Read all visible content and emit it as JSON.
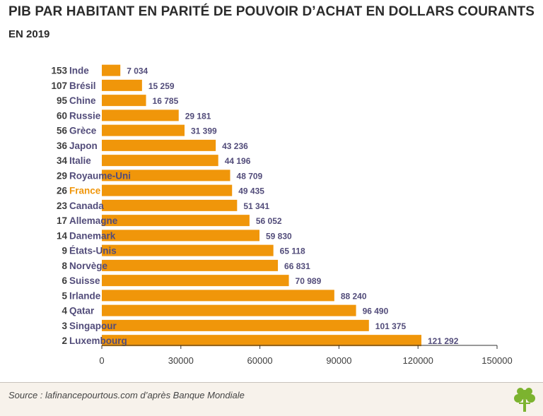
{
  "header": {
    "title": "PIB PAR HABITANT EN PARITÉ DE POUVOIR D’ACHAT EN DOLLARS COURANTS",
    "subtitle": "EN 2019"
  },
  "footer": {
    "source": "Source : lafinancepourtous.com d’après Banque Mondiale"
  },
  "colors": {
    "bar": "#f0960a",
    "highlight_label": "#f0960a",
    "country_label": "#524c7a",
    "axis": "#333333"
  },
  "chart_data": {
    "type": "bar",
    "orientation": "horizontal",
    "title": "PIB PAR HABITANT EN PARITÉ DE POUVOIR D’ACHAT EN DOLLARS COURANTS",
    "subtitle": "EN 2019",
    "xlim": [
      0,
      150000
    ],
    "xticks": [
      "0",
      "30000",
      "60000",
      "90000",
      "120000",
      "150000"
    ],
    "xtick_values": [
      0,
      30000,
      60000,
      90000,
      120000,
      150000
    ],
    "highlight": "France",
    "ranks": [
      "153",
      "107",
      "95",
      "60",
      "56",
      "36",
      "34",
      "29",
      "26",
      "23",
      "17",
      "14",
      "9",
      "8",
      "6",
      "5",
      "4",
      "3",
      "2"
    ],
    "categories": [
      "Inde",
      "Brésil",
      "Chine",
      "Russie",
      "Grèce",
      "Japon",
      "Italie",
      "Royaume-Uni",
      "France",
      "Canada",
      "Allemagne",
      "Danemark",
      "États-Unis",
      "Norvège",
      "Suisse",
      "Irlande",
      "Qatar",
      "Singapour",
      "Luxembourg"
    ],
    "values": [
      7034,
      15259,
      16785,
      29181,
      31399,
      43236,
      44196,
      48709,
      49435,
      51341,
      56052,
      59830,
      65118,
      66831,
      70989,
      88240,
      96490,
      101375,
      121292
    ],
    "value_labels": [
      "7 034",
      "15 259",
      "16 785",
      "29 181",
      "31 399",
      "43 236",
      "44 196",
      "48 709",
      "49 435",
      "51 341",
      "56 052",
      "59 830",
      "65 118",
      "66 831",
      "70 989",
      "88 240",
      "96 490",
      "101 375",
      "121 292"
    ]
  }
}
